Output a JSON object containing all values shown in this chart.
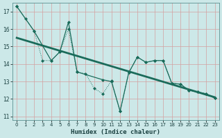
{
  "xlabel": "Humidex (Indice chaleur)",
  "bg_color": "#cce8e8",
  "grid_color": "#b8d8d8",
  "line_color": "#1a6b5a",
  "xlim": [
    -0.5,
    23.5
  ],
  "ylim": [
    10.8,
    17.5
  ],
  "yticks": [
    11,
    12,
    13,
    14,
    15,
    16,
    17
  ],
  "xticks": [
    0,
    1,
    2,
    3,
    4,
    5,
    6,
    7,
    8,
    9,
    10,
    11,
    12,
    13,
    14,
    15,
    16,
    17,
    18,
    19,
    20,
    21,
    22,
    23
  ],
  "series1_x": [
    0,
    1,
    2,
    3,
    4,
    5,
    6,
    7,
    8,
    9,
    10,
    11,
    12,
    13,
    14,
    15,
    16,
    17,
    18,
    19,
    20,
    21,
    22,
    23
  ],
  "series1_y": [
    17.3,
    16.6,
    15.9,
    14.2,
    14.2,
    14.7,
    16.0,
    13.55,
    13.45,
    12.6,
    12.3,
    13.05,
    11.3,
    13.5,
    14.4,
    14.1,
    14.2,
    14.2,
    12.9,
    12.85,
    12.5,
    12.4,
    12.3,
    12.05
  ],
  "series2_x": [
    0,
    2,
    4,
    5,
    6,
    7,
    10,
    11,
    12,
    13,
    14,
    15,
    16,
    17,
    18,
    19,
    20,
    21,
    22,
    23
  ],
  "series2_y": [
    17.3,
    15.9,
    14.2,
    14.7,
    16.4,
    13.55,
    13.1,
    13.0,
    11.3,
    13.5,
    14.4,
    14.1,
    14.2,
    14.2,
    12.9,
    12.85,
    12.5,
    12.4,
    12.3,
    12.05
  ],
  "trend_x": [
    0,
    23
  ],
  "trend_y": [
    15.5,
    12.1
  ]
}
